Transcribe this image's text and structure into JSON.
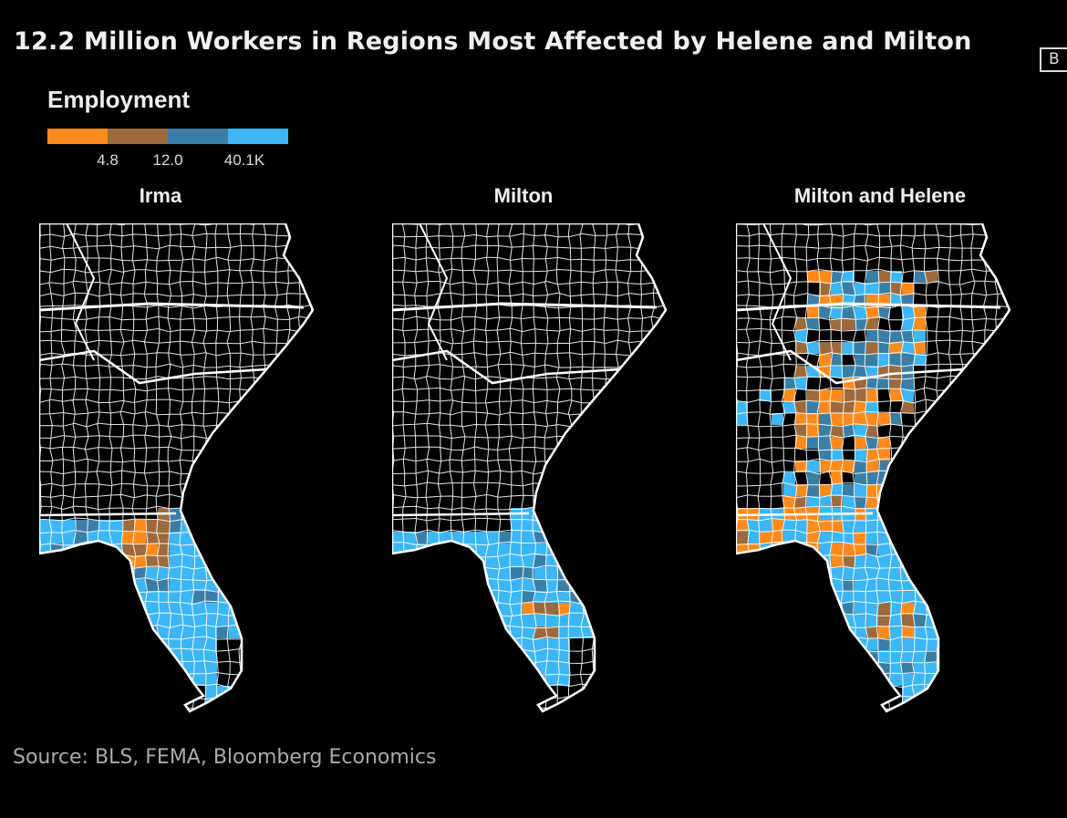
{
  "header": {
    "title": "12.2 Million Workers in Regions Most Affected by Helene and Milton",
    "logo_text": "B"
  },
  "legend": {
    "title": "Employment",
    "colors": [
      "#ff8a1c",
      "#9c6a3c",
      "#3a7ea6",
      "#3cb6f5"
    ],
    "ticks": [
      "4.8",
      "12.0",
      "40.1K"
    ]
  },
  "maps": [
    {
      "title": "Irma"
    },
    {
      "title": "Milton"
    },
    {
      "title": "Milton and Helene"
    }
  ],
  "footer": {
    "source": "Source: BLS, FEMA, Bloomberg Economics"
  }
}
